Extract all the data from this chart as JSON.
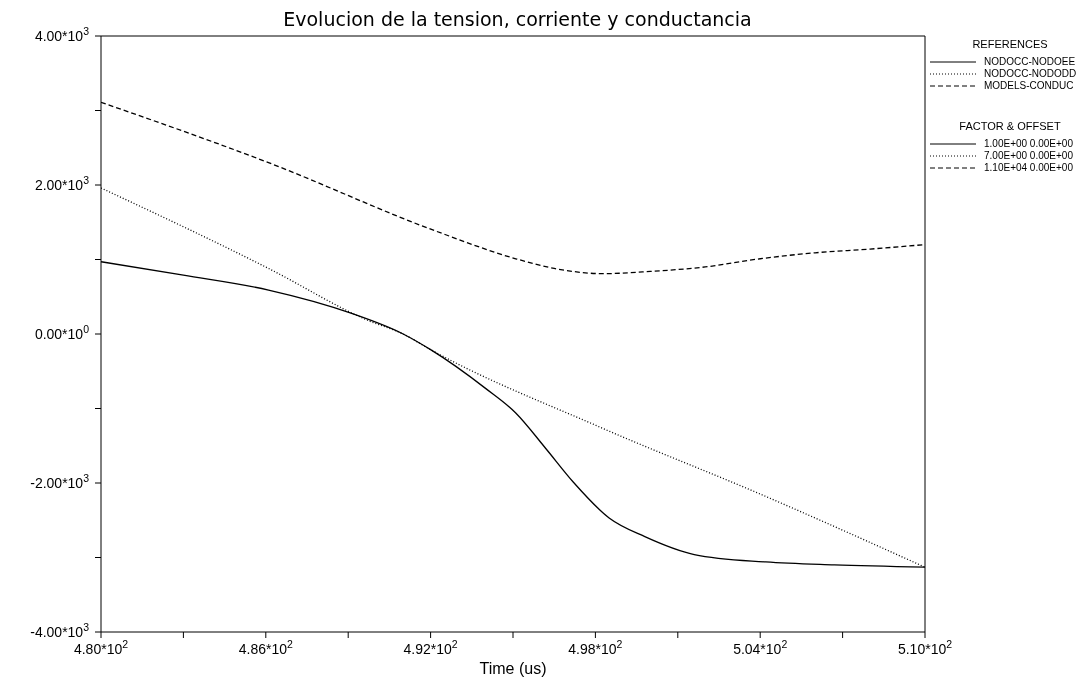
{
  "chart_data": {
    "type": "line",
    "title": "Evolucion de la tension, corriente y conductancia",
    "xlabel": "Time (us)",
    "legend_title": "REFERENCES",
    "legend": "top right",
    "marker": "none",
    "xlim": [
      480,
      510
    ],
    "ylim": [
      -4000,
      4000
    ],
    "xticks": [
      {
        "value": 480,
        "label": "4.80*10$^{2}$"
      },
      {
        "value": 483,
        "label": null
      },
      {
        "value": 486,
        "label": "4.86*10$^{2}$"
      },
      {
        "value": 489,
        "label": null
      },
      {
        "value": 492,
        "label": "4.92*10$^{2}$"
      },
      {
        "value": 495,
        "label": null
      },
      {
        "value": 498,
        "label": "4.98*10$^{2}$"
      },
      {
        "value": 501,
        "label": null
      },
      {
        "value": 504,
        "label": "5.04*10$^{2}$"
      },
      {
        "value": 507,
        "label": null
      },
      {
        "value": 510,
        "label": "5.10*10$^{2}$"
      }
    ],
    "yticks": [
      {
        "value": -4000,
        "label": "-4.00*10$^{3}$"
      },
      {
        "value": -3000,
        "label": null
      },
      {
        "value": -2000,
        "label": "-2.00*10$^{3}$"
      },
      {
        "value": -1000,
        "label": null
      },
      {
        "value": 0,
        "label": "0.00*10$^{0}$"
      },
      {
        "value": 1000,
        "label": null
      },
      {
        "value": 2000,
        "label": "2.00*10$^{3}$"
      },
      {
        "value": 3000,
        "label": null
      },
      {
        "value": 4000,
        "label": "4.00*10$^{3}$"
      }
    ],
    "series": [
      {
        "name": "NODOCC-NODOEE",
        "color": "#000000",
        "line_style": "solid",
        "x": [
          480,
          483,
          486.1,
          489.1,
          491,
          492,
          494,
          495.1,
          496.2,
          497.2,
          498.5,
          499.8,
          501.6,
          504.2,
          506.7,
          510
        ],
        "values": [
          970,
          790,
          590,
          280,
          0,
          -210,
          -730,
          -1060,
          -1540,
          -1990,
          -2470,
          -2720,
          -2960,
          -3060,
          -3100,
          -3130
        ]
      },
      {
        "name": "NODOCC-NODODD",
        "color": "#000000",
        "line_style": "dotted",
        "x": [
          480,
          486.1,
          489.8,
          491,
          492,
          498.1,
          504.2,
          510
        ],
        "values": [
          1960,
          880,
          170,
          0,
          -210,
          -1240,
          -2180,
          -3130
        ]
      },
      {
        "name": "MODELS-CONDUC",
        "color": "#000000",
        "line_style": "dashed",
        "x": [
          480,
          486.1,
          492.2,
          495.1,
          496.5,
          498.3,
          500,
          502,
          504,
          506,
          508,
          510
        ],
        "values": [
          3110,
          2300,
          1380,
          1010,
          880,
          810,
          840,
          900,
          1010,
          1090,
          1140,
          1200
        ]
      }
    ],
    "annotations": [
      "FACTOR & OFFSET",
      "1.00E+00 0.00E+00",
      "7.00E+00 0.00E+00",
      "1.10E+04 0.00E+00"
    ]
  }
}
